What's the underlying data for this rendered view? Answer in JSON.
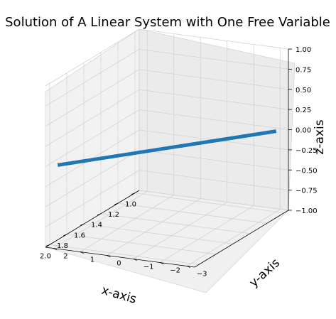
{
  "chart_data": {
    "type": "line3d",
    "title": "Solution of A Linear System with One Free Variable",
    "xlabel": "x-axis",
    "ylabel": "y-axis",
    "zlabel": "z-axis",
    "xlim": [
      0.95,
      2.05
    ],
    "ylim": [
      -3.3,
      2.3
    ],
    "zlim": [
      -1.0,
      1.0
    ],
    "xticks": [
      "1.0",
      "1.2",
      "1.4",
      "1.6",
      "1.8",
      "2.0"
    ],
    "yticks": [
      "−3",
      "−2",
      "−1",
      "0",
      "1",
      "2"
    ],
    "zticks": [
      "−1.00",
      "−0.75",
      "−0.50",
      "−0.25",
      "0.00",
      "0.25",
      "0.50",
      "0.75",
      "1.00"
    ],
    "grid": true,
    "series": [
      {
        "x": [
          1.0,
          2.0
        ],
        "y": [
          -3.0,
          2.0
        ],
        "z": [
          0.0,
          0.0
        ],
        "color": "#1f77b4"
      }
    ]
  }
}
